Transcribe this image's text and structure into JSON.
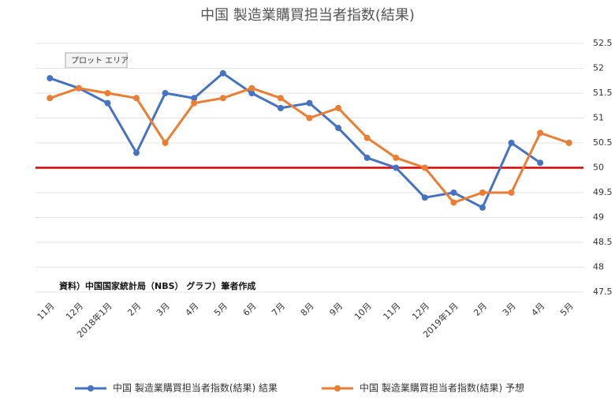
{
  "chart_data": {
    "type": "line",
    "title": "中国 製造業購買担当者指数(結果)",
    "categories": [
      "11月",
      "12月",
      "2018年1月",
      "2月",
      "3月",
      "4月",
      "5月",
      "6月",
      "7月",
      "8月",
      "9月",
      "10月",
      "11月",
      "12月",
      "2019年1月",
      "2月",
      "3月",
      "4月",
      "5月"
    ],
    "series": [
      {
        "name": "中国 製造業購買担当者指数(結果) 結果",
        "color": "#4472c4",
        "values": [
          51.8,
          51.6,
          51.3,
          50.3,
          51.5,
          51.4,
          51.9,
          51.5,
          51.2,
          51.3,
          50.8,
          50.2,
          50.0,
          49.4,
          49.5,
          49.2,
          50.5,
          50.1,
          null
        ]
      },
      {
        "name": "中国 製造業購買担当者指数(結果) 予想",
        "color": "#ed7d31",
        "values": [
          51.4,
          51.6,
          51.5,
          51.4,
          50.5,
          51.3,
          51.4,
          51.6,
          51.4,
          51.0,
          51.2,
          50.6,
          50.2,
          50.0,
          49.3,
          49.5,
          49.5,
          50.7,
          50.5
        ]
      }
    ],
    "ylim": [
      47.5,
      52.5
    ],
    "yticks": [
      47.5,
      48,
      48.5,
      49,
      49.5,
      50,
      50.5,
      51,
      51.5,
      52,
      52.5
    ],
    "grid": true,
    "reference_line": {
      "value": 50,
      "color": "#e00000"
    },
    "annotations": [
      "プロット エリア",
      "資料）中国国家統計局（NBS） グラフ）筆者作成"
    ],
    "legend": "bottom"
  }
}
